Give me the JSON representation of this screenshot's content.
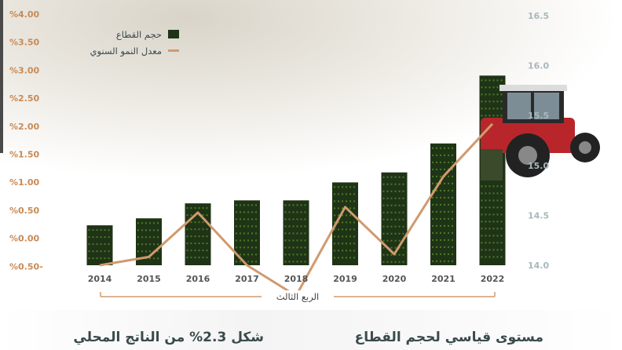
{
  "colors": {
    "bar": "#1f3416",
    "line": "#d09a6e",
    "left_axis_text": "#c98a55",
    "right_axis_text": "#a9b8bc"
  },
  "legend": {
    "bar_label": "حجم القطاع",
    "line_label": "معدل النمو السنوي"
  },
  "bracket_label": "الربع الثالث",
  "headlines": {
    "left": "شكل 2.3% من الناتج المحلي",
    "right": "مستوى قياسي لحجم القطاع"
  },
  "chart_data": {
    "type": "bar",
    "categories": [
      "2014",
      "2015",
      "2016",
      "2017",
      "2018",
      "2019",
      "2020",
      "2021",
      "2022"
    ],
    "series": [
      {
        "name": "حجم القطاع",
        "type": "bar",
        "axis": "right",
        "values": [
          14.4,
          14.47,
          14.62,
          14.65,
          14.65,
          14.83,
          14.93,
          15.22,
          15.9
        ]
      },
      {
        "name": "معدل النمو السنوي",
        "type": "line",
        "axis": "left",
        "values": [
          -0.5,
          -0.35,
          0.45,
          -0.5,
          -1.05,
          0.55,
          -0.3,
          1.1,
          2.05
        ]
      }
    ],
    "left_axis": {
      "ticks": [
        "%4.00",
        "%3.50",
        "%3.00",
        "%2.50",
        "%2.00",
        "%1.50",
        "%1.00",
        "%0.50",
        "%0.00",
        "%0.50-"
      ],
      "ylim": [
        -0.5,
        4.0
      ]
    },
    "right_axis": {
      "ticks": [
        "16.5",
        "16.0",
        "15.5",
        "15.0",
        "14.5",
        "14.0"
      ],
      "ylim": [
        14.0,
        16.5
      ]
    },
    "grid": false,
    "legend_position": "top-left"
  }
}
